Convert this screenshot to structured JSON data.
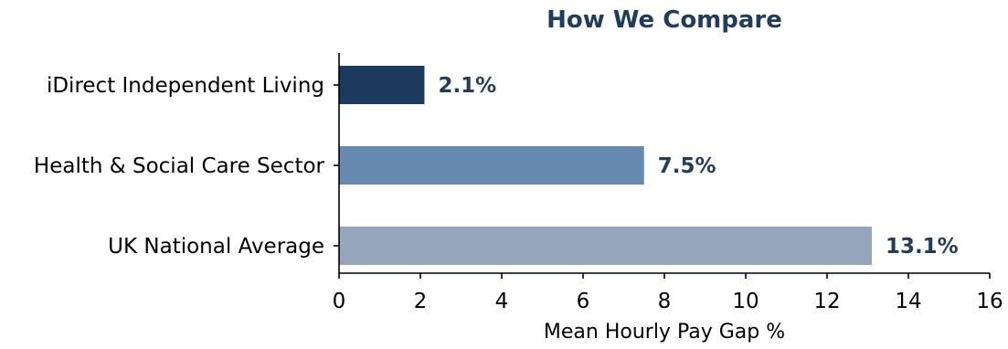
{
  "colors": {
    "title": "#1f3d5e",
    "data_label": "#1f3d5e",
    "axis": "#000000"
  },
  "chart_data": {
    "type": "bar",
    "orientation": "horizontal",
    "title": "How We Compare",
    "xlabel": "Mean Hourly Pay Gap %",
    "ylabel": "",
    "xlim": [
      0,
      16
    ],
    "xticks": [
      0,
      2,
      4,
      6,
      8,
      10,
      12,
      14,
      16
    ],
    "grid": false,
    "categories": [
      "iDirect Independent Living",
      "Health & Social Care Sector",
      "UK National Average"
    ],
    "values": [
      2.1,
      7.5,
      13.1
    ],
    "value_labels": [
      "2.1%",
      "7.5%",
      "13.1%"
    ],
    "bar_colors": [
      "#1c3a5e",
      "#678bb0",
      "#94a6bc"
    ]
  }
}
